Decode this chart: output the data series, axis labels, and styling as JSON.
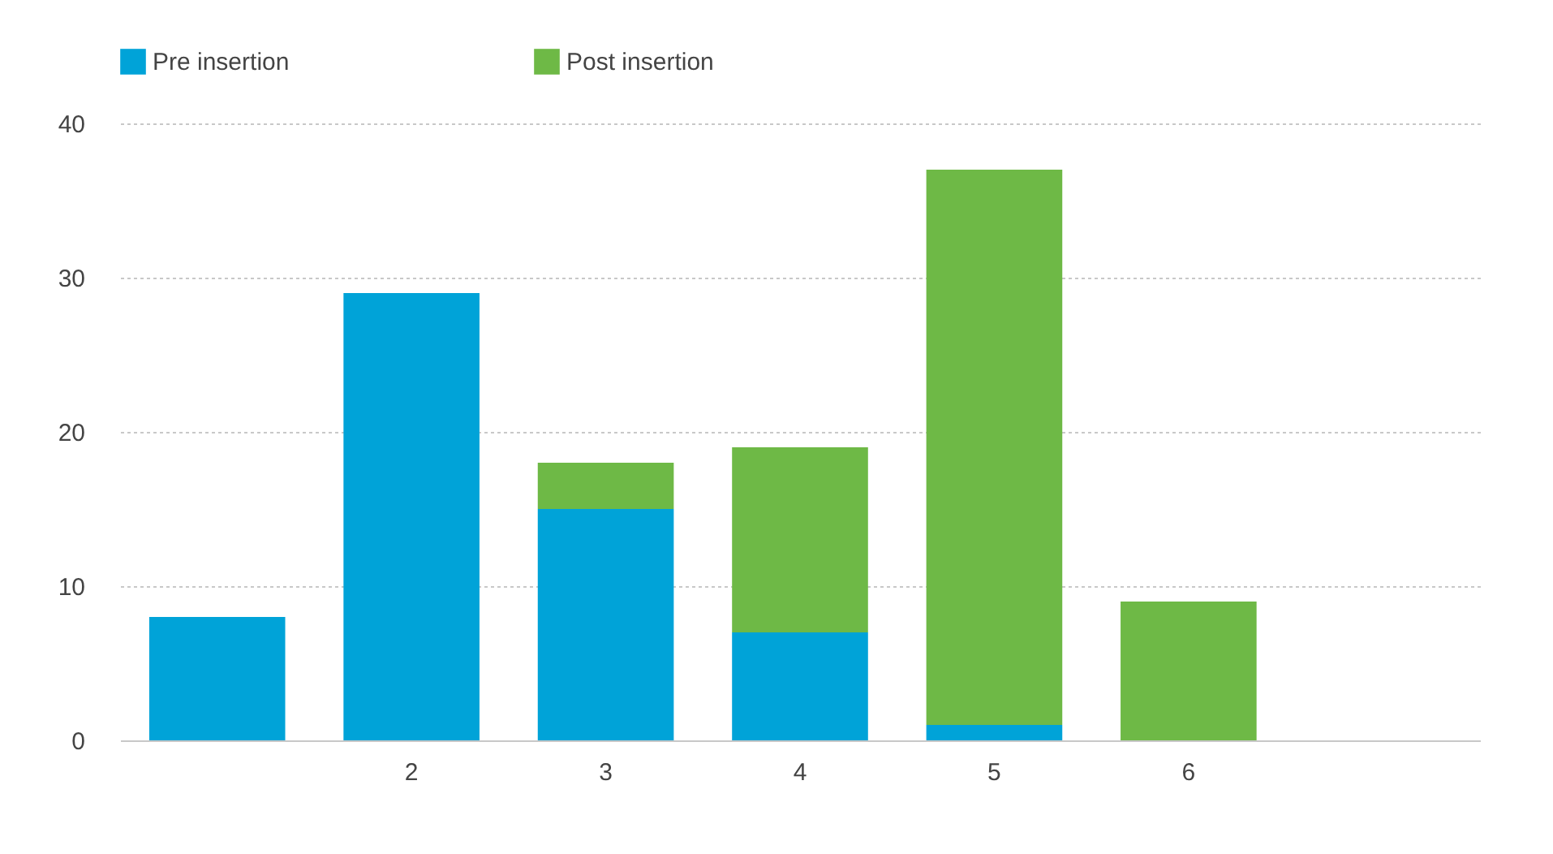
{
  "chart_data": {
    "type": "bar",
    "stacked": true,
    "categories": [
      null,
      "2",
      "3",
      "4",
      "5",
      "6",
      null
    ],
    "series": [
      {
        "name": "Pre insertion",
        "color": "#00a3d8",
        "values": [
          8,
          29,
          15,
          7,
          1,
          null,
          null
        ]
      },
      {
        "name": "Post insertion",
        "color": "#6eb946",
        "values": [
          null,
          null,
          3,
          12,
          36,
          9,
          null
        ]
      }
    ],
    "ylim": [
      0,
      40
    ],
    "yticks": [
      0,
      10,
      20,
      30,
      40
    ],
    "grid": "y",
    "legend": "top"
  }
}
